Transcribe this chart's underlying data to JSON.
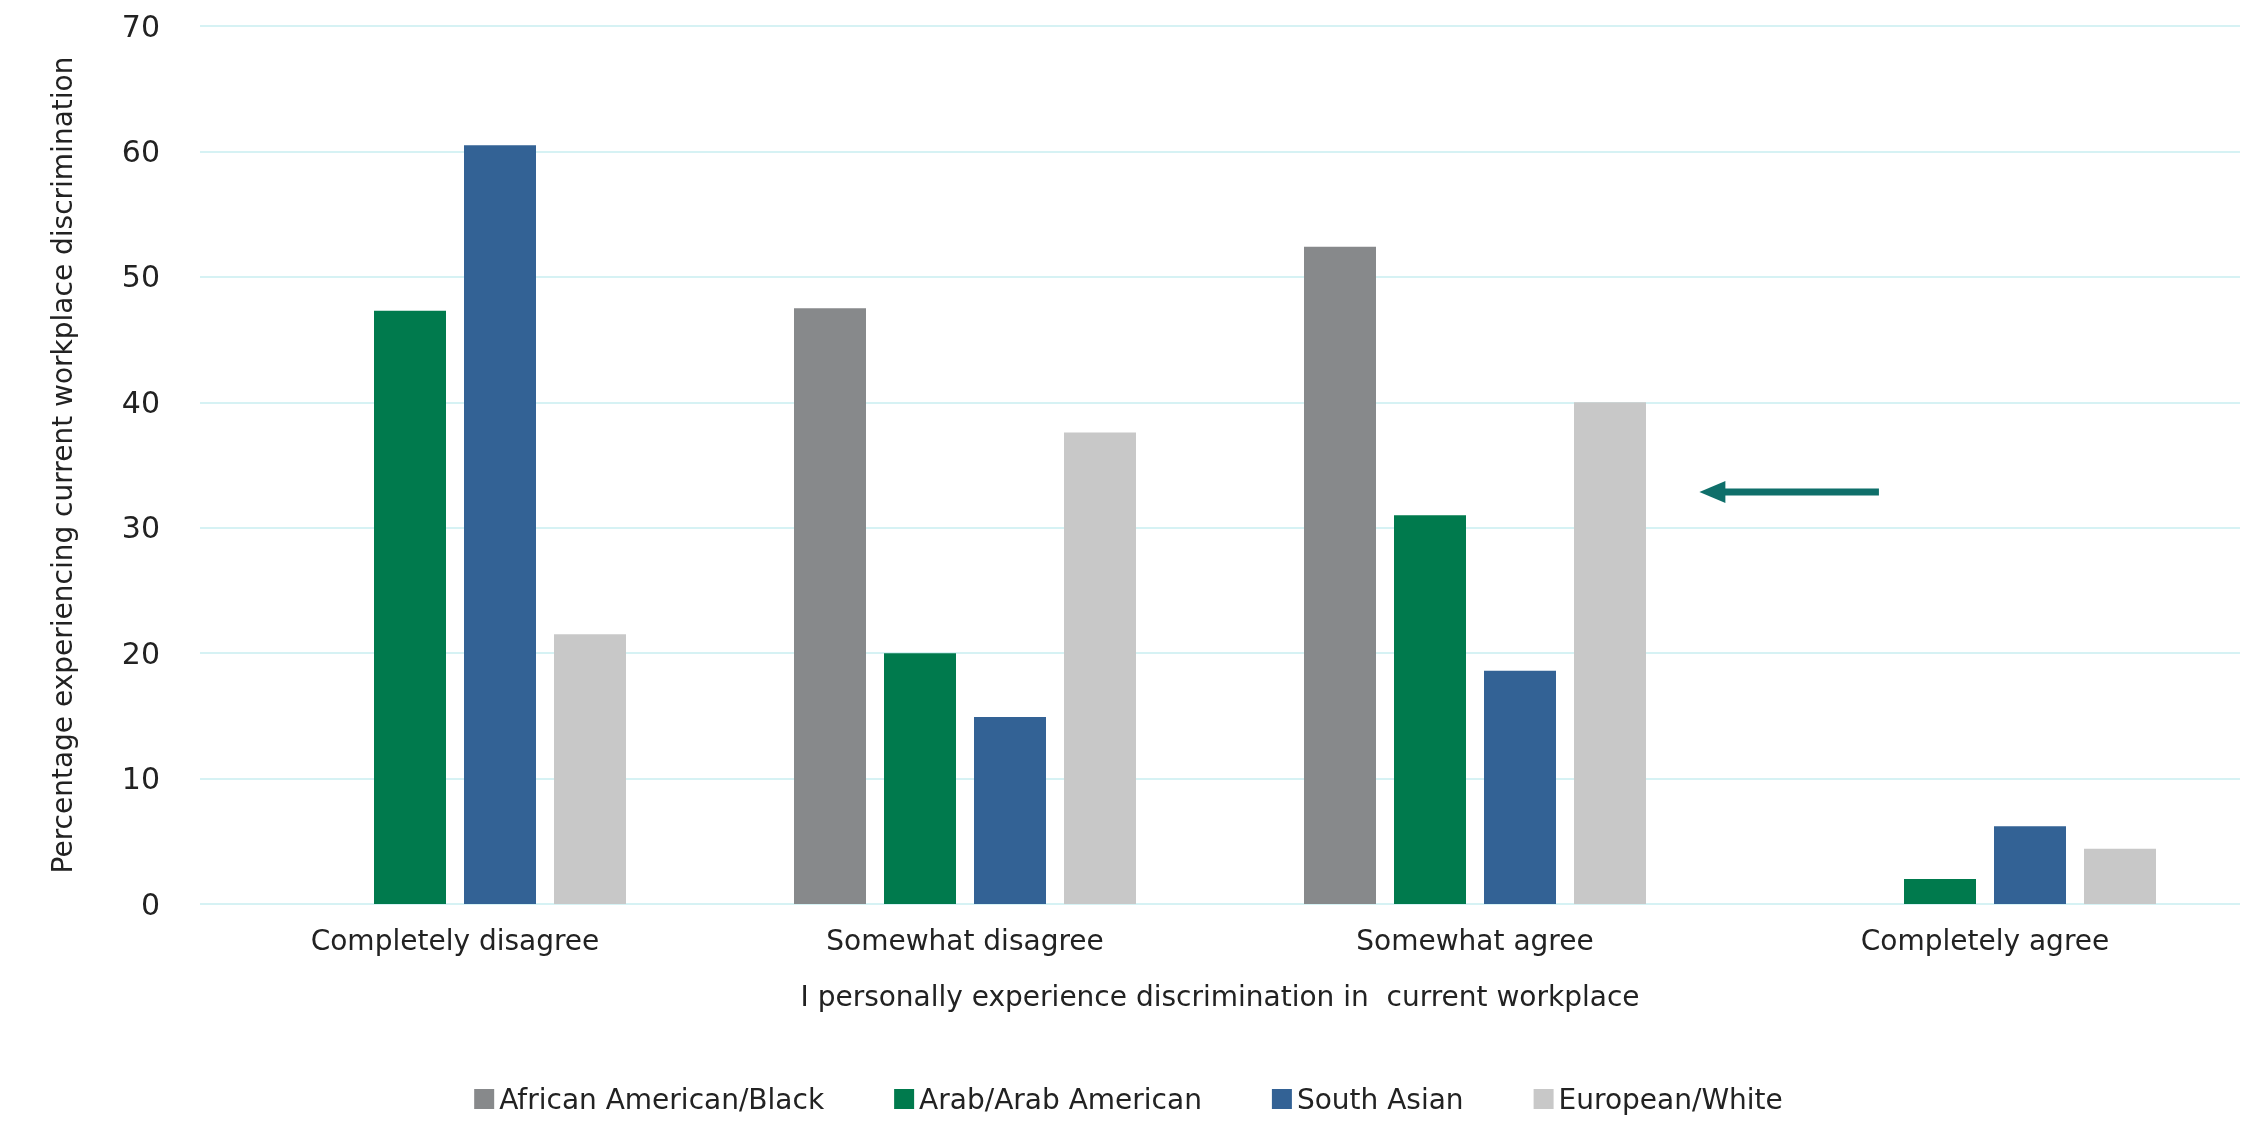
{
  "chart_data": {
    "type": "bar",
    "xlabel": "I personally experience discrimination in  current workplace",
    "ylabel": "Percentage experiencing current workplace discrimination",
    "categories": [
      "Completely disagree",
      "Somewhat disagree",
      "Somewhat agree",
      "Completely agree"
    ],
    "series": [
      {
        "name": "African American/Black",
        "color": "#87898b",
        "values": [
          null,
          47.5,
          52.4,
          null
        ]
      },
      {
        "name": "Arab/Arab American",
        "color": "#007a4d",
        "values": [
          47.3,
          20.0,
          31.0,
          2.0
        ]
      },
      {
        "name": "South Asian",
        "color": "#336295",
        "values": [
          60.5,
          14.9,
          18.6,
          6.2
        ]
      },
      {
        "name": "European/White",
        "color": "#c8c8c8",
        "values": [
          21.5,
          37.6,
          40.0,
          4.4
        ]
      }
    ],
    "ylim": [
      0,
      70
    ],
    "yticks": [
      0,
      10,
      20,
      30,
      40,
      50,
      60,
      70
    ],
    "grid": "y",
    "legend": "bottom"
  }
}
